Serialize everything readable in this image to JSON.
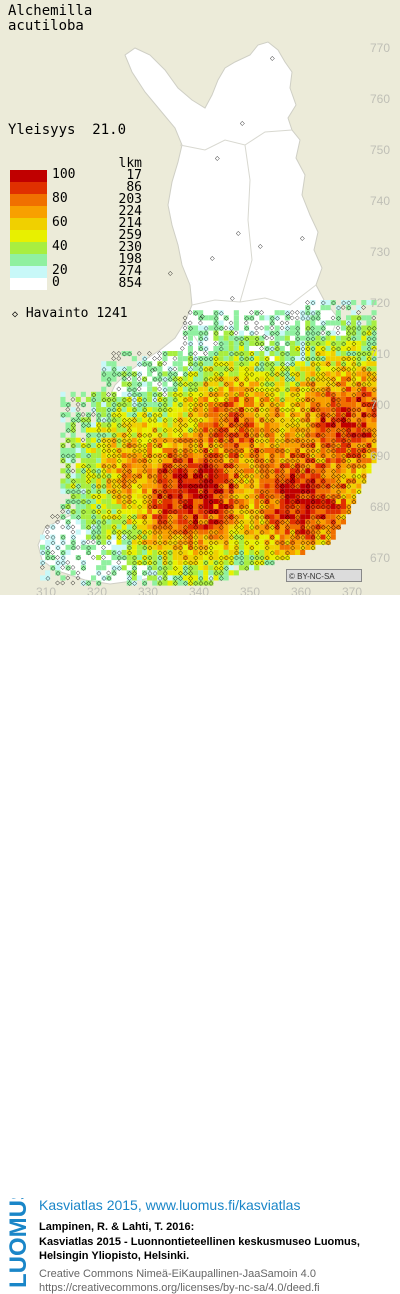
{
  "species": {
    "line1": "Alchemilla",
    "line2": "acutiloba"
  },
  "frequency": {
    "label": "Yleisyys",
    "value": "21.0"
  },
  "legend": {
    "header": "lkm",
    "rows": [
      {
        "color": "#c00000",
        "label": "100",
        "count": "17"
      },
      {
        "color": "#e03000",
        "count": "86"
      },
      {
        "color": "#f07000",
        "label": "80",
        "count": "203"
      },
      {
        "color": "#f8a000",
        "count": "224"
      },
      {
        "color": "#f0d000",
        "label": "60",
        "count": "214"
      },
      {
        "color": "#e8f000",
        "count": "259"
      },
      {
        "color": "#a8ee40",
        "label": "40",
        "count": "230"
      },
      {
        "color": "#90f0a0",
        "count": "198"
      },
      {
        "color": "#c8f8f8",
        "label": "20",
        "count": "274"
      },
      {
        "color": "#ffffff",
        "label": "0",
        "count": "854"
      }
    ]
  },
  "observations": {
    "label": "Havainto",
    "value": "1241"
  },
  "grid_y_labels": [
    "770",
    "760",
    "750",
    "740",
    "730",
    "720",
    "710",
    "700",
    "690",
    "680",
    "670"
  ],
  "grid_x_labels": [
    "310",
    "320",
    "330",
    "340",
    "350",
    "360",
    "370"
  ],
  "license_badge": "BY-NC-SA",
  "footer": {
    "logo_text": "LUOMUS",
    "title": "Kasviatlas 2015, www.luomus.fi/kasviatlas",
    "citation_line1": "Lampinen, R. & Lahti, T. 2016:",
    "citation_line2": "Kasviatlas 2015 - Luonnontieteellinen keskusmuseo Luomus,",
    "citation_line3": "Helsingin Yliopisto, Helsinki.",
    "license_line1": "Creative Commons Nimeä-EiKaupallinen-JaaSamoin 4.0",
    "license_line2": "https://creativecommons.org/licenses/by-nc-sa/4.0/deed.fi"
  },
  "colors": {
    "background": "#ecebd9",
    "land": "#ffffff",
    "brand_blue": "#1a86c8"
  }
}
